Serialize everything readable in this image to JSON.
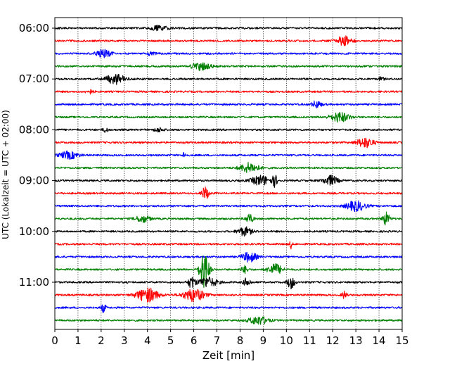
{
  "chart_data": {
    "type": "line",
    "title": "",
    "xlabel": "Zeit  [min]",
    "ylabel": "UTC (Lokalzeit = UTC + 02:00)",
    "xlim": [
      0,
      15
    ],
    "x_ticks": [
      "0",
      "1",
      "2",
      "3",
      "4",
      "5",
      "6",
      "7",
      "8",
      "9",
      "10",
      "11",
      "12",
      "13",
      "14",
      "15"
    ],
    "y_ticks": [
      "06:00",
      "07:00",
      "08:00",
      "09:00",
      "10:00",
      "11:00"
    ],
    "grid": "vertical dotted lines at each minute",
    "trace_interval_min": 15,
    "colors": [
      "#000000",
      "#ff0000",
      "#0000ff",
      "#008000"
    ],
    "traces": [
      {
        "start": "06:00",
        "color": "#000000",
        "bursts": [
          [
            4.5,
            0.8,
            3
          ]
        ]
      },
      {
        "start": "06:15",
        "color": "#ff0000",
        "bursts": [
          [
            12.5,
            0.6,
            8
          ]
        ]
      },
      {
        "start": "06:30",
        "color": "#0000ff",
        "bursts": [
          [
            2.1,
            0.6,
            6
          ],
          [
            4.2,
            0.4,
            3
          ]
        ]
      },
      {
        "start": "06:45",
        "color": "#008000",
        "bursts": [
          [
            6.3,
            0.8,
            5
          ]
        ]
      },
      {
        "start": "07:00",
        "color": "#000000",
        "bursts": [
          [
            2.6,
            0.8,
            7
          ],
          [
            14.1,
            0.2,
            3
          ]
        ]
      },
      {
        "start": "07:15",
        "color": "#ff0000",
        "bursts": [
          [
            1.5,
            0.3,
            3
          ]
        ]
      },
      {
        "start": "07:30",
        "color": "#0000ff",
        "bursts": [
          [
            11.3,
            0.4,
            5
          ]
        ]
      },
      {
        "start": "07:45",
        "color": "#008000",
        "bursts": [
          [
            12.3,
            0.8,
            7
          ]
        ]
      },
      {
        "start": "08:00",
        "color": "#000000",
        "bursts": [
          [
            2.2,
            0.2,
            4
          ],
          [
            4.5,
            0.4,
            3
          ]
        ]
      },
      {
        "start": "08:15",
        "color": "#ff0000",
        "bursts": [
          [
            13.4,
            0.7,
            7
          ]
        ]
      },
      {
        "start": "08:30",
        "color": "#0000ff",
        "bursts": [
          [
            0.6,
            0.8,
            5
          ],
          [
            5.6,
            0.1,
            8
          ]
        ]
      },
      {
        "start": "08:45",
        "color": "#008000",
        "bursts": [
          [
            8.4,
            0.8,
            7
          ]
        ]
      },
      {
        "start": "09:00",
        "color": "#000000",
        "bursts": [
          [
            8.9,
            0.8,
            7
          ],
          [
            9.5,
            0.2,
            8
          ],
          [
            11.9,
            0.6,
            7
          ]
        ]
      },
      {
        "start": "09:15",
        "color": "#ff0000",
        "bursts": [
          [
            6.5,
            0.3,
            9
          ]
        ]
      },
      {
        "start": "09:30",
        "color": "#0000ff",
        "bursts": [
          [
            13.0,
            0.8,
            7
          ]
        ]
      },
      {
        "start": "09:45",
        "color": "#008000",
        "bursts": [
          [
            3.8,
            0.6,
            5
          ],
          [
            8.4,
            0.3,
            7
          ],
          [
            14.3,
            0.3,
            9
          ]
        ]
      },
      {
        "start": "10:00",
        "color": "#000000",
        "bursts": [
          [
            8.2,
            0.6,
            6
          ]
        ]
      },
      {
        "start": "10:15",
        "color": "#ff0000",
        "bursts": [
          [
            10.2,
            0.1,
            7
          ]
        ]
      },
      {
        "start": "10:30",
        "color": "#0000ff",
        "bursts": [
          [
            8.4,
            0.6,
            7
          ]
        ]
      },
      {
        "start": "10:45",
        "color": "#008000",
        "bursts": [
          [
            6.45,
            0.4,
            26
          ],
          [
            9.5,
            0.6,
            8
          ],
          [
            8.2,
            0.3,
            5
          ]
        ]
      },
      {
        "start": "11:00",
        "color": "#000000",
        "bursts": [
          [
            5.9,
            0.3,
            8
          ],
          [
            6.6,
            0.8,
            7
          ],
          [
            10.2,
            0.3,
            9
          ],
          [
            8.3,
            0.3,
            6
          ]
        ]
      },
      {
        "start": "11:15",
        "color": "#ff0000",
        "bursts": [
          [
            4.0,
            0.9,
            10
          ],
          [
            6.0,
            0.9,
            9
          ],
          [
            12.5,
            0.2,
            5
          ]
        ]
      },
      {
        "start": "11:30",
        "color": "#0000ff",
        "bursts": [
          [
            2.1,
            0.2,
            6
          ]
        ]
      },
      {
        "start": "11:45",
        "color": "#008000",
        "bursts": [
          [
            8.8,
            0.8,
            6
          ]
        ]
      }
    ]
  }
}
